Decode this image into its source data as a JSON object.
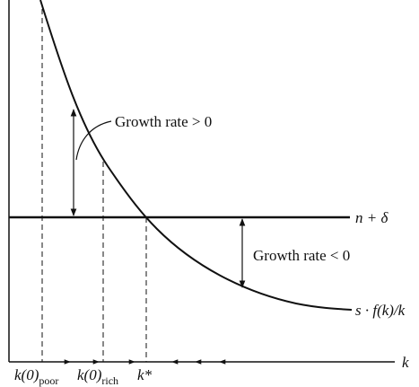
{
  "labels": {
    "growth_positive": "Growth rate > 0",
    "growth_negative": "Growth rate < 0",
    "depreciation_line": "n + δ",
    "curve": "s · f(k)/k",
    "x_axis": "k",
    "k_poor": {
      "base": "k(0)",
      "sub": "poor"
    },
    "k_rich": {
      "base": "k(0)",
      "sub": "rich"
    },
    "k_star": "k*"
  }
}
